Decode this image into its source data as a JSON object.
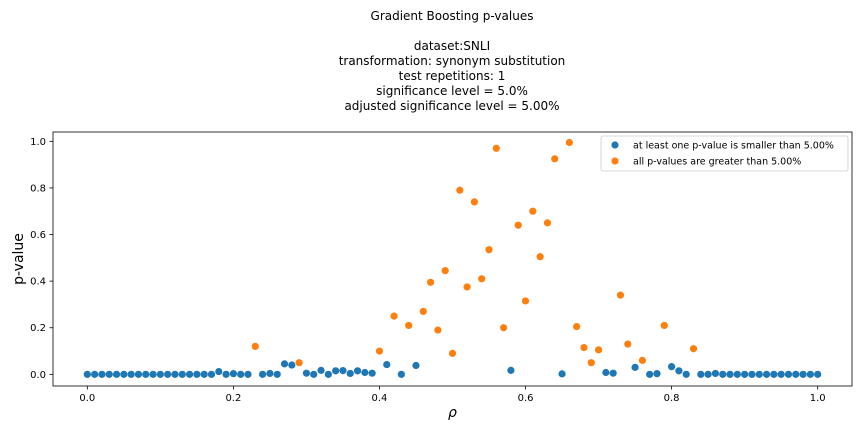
{
  "chart_data": {
    "type": "scatter",
    "title_lines": [
      "Gradient Boosting p-values",
      "",
      "dataset:SNLI",
      "transformation: synonym substitution",
      "test repetitions: 1",
      "significance level = 5.0%",
      "adjusted significance level = 5.00%"
    ],
    "xlabel": "ρ",
    "ylabel": "p-value",
    "xlim": [
      -0.047,
      1.047
    ],
    "ylim": [
      -0.05,
      1.04
    ],
    "xticks": [
      0.0,
      0.2,
      0.4,
      0.6,
      0.8,
      1.0
    ],
    "xtick_labels": [
      "0.0",
      "0.2",
      "0.4",
      "0.6",
      "0.8",
      "1.0"
    ],
    "yticks": [
      0.0,
      0.2,
      0.4,
      0.6,
      0.8,
      1.0
    ],
    "ytick_labels": [
      "0.0",
      "0.2",
      "0.4",
      "0.6",
      "0.8",
      "1.0"
    ],
    "grid": false,
    "legend_position": "top-right",
    "series": [
      {
        "name": "at least one p-value is smaller than 5.00%",
        "color": "#1f77b4",
        "x": [
          0.0,
          0.01,
          0.02,
          0.03,
          0.04,
          0.05,
          0.06,
          0.07,
          0.08,
          0.09,
          0.1,
          0.11,
          0.12,
          0.13,
          0.14,
          0.15,
          0.16,
          0.17,
          0.18,
          0.19,
          0.2,
          0.21,
          0.22,
          0.24,
          0.25,
          0.26,
          0.27,
          0.28,
          0.3,
          0.31,
          0.32,
          0.33,
          0.34,
          0.35,
          0.36,
          0.37,
          0.38,
          0.39,
          0.41,
          0.43,
          0.45,
          0.58,
          0.65,
          0.71,
          0.72,
          0.75,
          0.77,
          0.78,
          0.8,
          0.81,
          0.82,
          0.84,
          0.85,
          0.86,
          0.87,
          0.88,
          0.89,
          0.9,
          0.91,
          0.92,
          0.93,
          0.94,
          0.95,
          0.96,
          0.97,
          0.98,
          0.99,
          1.0
        ],
        "y": [
          0.0,
          0.0,
          0.0,
          0.0,
          0.0,
          0.0,
          0.0,
          0.0,
          0.0,
          0.0,
          0.0,
          0.0,
          0.0,
          0.0,
          0.0,
          0.0,
          0.0,
          0.0,
          0.012,
          0.0,
          0.003,
          0.0,
          0.0,
          0.0,
          0.004,
          0.0,
          0.045,
          0.04,
          0.005,
          0.0,
          0.017,
          0.0,
          0.015,
          0.016,
          0.004,
          0.015,
          0.008,
          0.005,
          0.042,
          0.0,
          0.038,
          0.017,
          0.002,
          0.008,
          0.005,
          0.03,
          0.0,
          0.003,
          0.033,
          0.015,
          0.0,
          0.0,
          0.0,
          0.004,
          0.0,
          0.0,
          0.0,
          0.0,
          0.0,
          0.0,
          0.0,
          0.0,
          0.0,
          0.0,
          0.0,
          0.0,
          0.0,
          0.0
        ]
      },
      {
        "name": "all p-values are greater than 5.00%",
        "color": "#ff7f0e",
        "x": [
          0.23,
          0.29,
          0.4,
          0.42,
          0.44,
          0.46,
          0.47,
          0.48,
          0.49,
          0.5,
          0.51,
          0.52,
          0.53,
          0.54,
          0.55,
          0.56,
          0.57,
          0.59,
          0.6,
          0.61,
          0.62,
          0.63,
          0.64,
          0.66,
          0.67,
          0.68,
          0.69,
          0.7,
          0.73,
          0.74,
          0.76,
          0.79,
          0.83
        ],
        "y": [
          0.12,
          0.05,
          0.1,
          0.25,
          0.21,
          0.27,
          0.395,
          0.19,
          0.445,
          0.09,
          0.79,
          0.375,
          0.74,
          0.41,
          0.535,
          0.97,
          0.2,
          0.64,
          0.315,
          0.7,
          0.505,
          0.65,
          0.925,
          0.995,
          0.205,
          0.115,
          0.05,
          0.105,
          0.34,
          0.13,
          0.06,
          0.21,
          0.11
        ]
      }
    ]
  }
}
